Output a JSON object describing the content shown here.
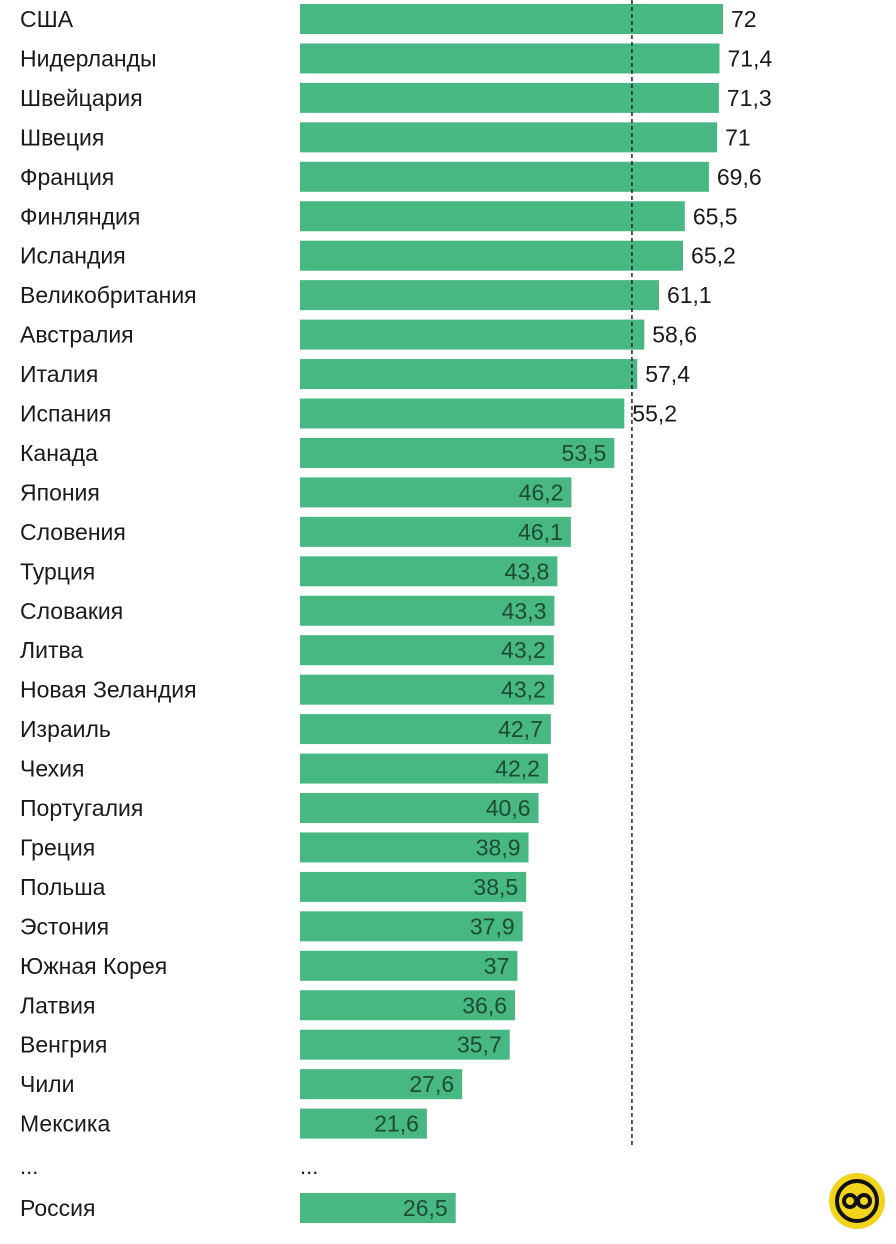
{
  "chart_data": {
    "type": "bar",
    "orientation": "horizontal",
    "categories": [
      "США",
      "Нидерланды",
      "Швейцария",
      "Швеция",
      "Франция",
      "Финляндия",
      "Исландия",
      "Великобритания",
      "Австралия",
      "Италия",
      "Испания",
      "Канада",
      "Япония",
      "Словения",
      "Турция",
      "Словакия",
      "Литва",
      "Новая Зеландия",
      "Израиль",
      "Чехия",
      "Португалия",
      "Греция",
      "Польша",
      "Эстония",
      "Южная Корея",
      "Латвия",
      "Венгрия",
      "Чили",
      "Мексика"
    ],
    "values": [
      72,
      71.4,
      71.3,
      71,
      69.6,
      65.5,
      65.2,
      61.1,
      58.6,
      57.4,
      55.2,
      53.5,
      46.2,
      46.1,
      43.8,
      43.3,
      43.2,
      43.2,
      42.7,
      42.2,
      40.6,
      38.9,
      38.5,
      37.9,
      37,
      36.6,
      35.7,
      27.6,
      21.6
    ],
    "value_labels": [
      "72",
      "71,4",
      "71,3",
      "71",
      "69,6",
      "65,5",
      "65,2",
      "61,1",
      "58,6",
      "57,4",
      "55,2",
      "53,5",
      "46,2",
      "46,1",
      "43,8",
      "43,3",
      "43,2",
      "43,2",
      "42,7",
      "42,2",
      "40,6",
      "38,9",
      "38,5",
      "37,9",
      "37",
      "36,6",
      "35,7",
      "27,6",
      "21,6"
    ],
    "separator": {
      "label_left": "...",
      "label_right": "..."
    },
    "extra_category": {
      "label": "Россия",
      "value": 26.5,
      "value_label": "26,5"
    },
    "reference_line_value": 56.5,
    "xlim": [
      0,
      72
    ],
    "grid": false,
    "legend": "none",
    "bar_color": "#47b881",
    "reference_line_color": "#222222"
  },
  "logo": {
    "icon": "round-yellow-logo-icon",
    "background_color": "#f3d41c",
    "foreground_color": "#111111"
  }
}
